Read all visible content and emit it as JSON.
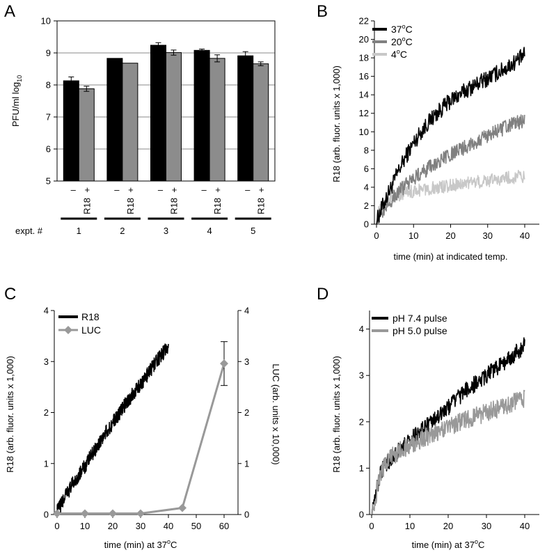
{
  "chart_data": [
    {
      "panel": "A",
      "type": "bar",
      "ylabel": "PFU/ml log10",
      "ylabel_main": "PFU/ml log",
      "ylabel_sub": "10",
      "ylim": [
        5,
        10
      ],
      "yticks": [
        5,
        6,
        7,
        8,
        9,
        10
      ],
      "grid": true,
      "group_label": "expt. #",
      "groups": [
        "1",
        "2",
        "3",
        "4",
        "5"
      ],
      "bar_labels": [
        "–",
        "+ R18"
      ],
      "minus_label": "–",
      "plus_label": "+",
      "r18_label": "R18",
      "colors": {
        "minus": "#000000",
        "plus": "#8c8c8c"
      },
      "series": [
        {
          "key": "minus",
          "values": [
            8.13,
            8.83,
            9.24,
            9.08,
            8.91
          ],
          "errors": [
            0.12,
            0,
            0.08,
            0.04,
            0.13
          ]
        },
        {
          "key": "plus",
          "values": [
            7.88,
            8.68,
            9.01,
            8.83,
            8.66
          ],
          "errors": [
            0.08,
            0,
            0.08,
            0.11,
            0.06
          ]
        }
      ]
    },
    {
      "panel": "B",
      "type": "line",
      "xlabel": "time (min) at indicated temp.",
      "ylabel": "R18 (arb. fluor. units x 1,000)",
      "xlim": [
        0,
        40
      ],
      "ylim": [
        0,
        22
      ],
      "xticks": [
        0,
        10,
        20,
        30,
        40
      ],
      "yticks": [
        0,
        2,
        4,
        6,
        8,
        10,
        12,
        14,
        16,
        18,
        20,
        22
      ],
      "legend_position": "top-left",
      "series": [
        {
          "name_main": "37",
          "name_sup": "o",
          "name_unit": "C",
          "color": "#000000",
          "noise": 0.9,
          "x": [
            0,
            1,
            2,
            3,
            4,
            5,
            6,
            8,
            10,
            12,
            15,
            20,
            25,
            30,
            35,
            40
          ],
          "y": [
            0.3,
            1.3,
            2.3,
            3.2,
            4.0,
            4.9,
            5.8,
            7.4,
            8.8,
            10.0,
            11.5,
            13.4,
            14.7,
            15.8,
            16.9,
            18.3
          ]
        },
        {
          "name_main": "20",
          "name_sup": "o",
          "name_unit": "C",
          "color": "#808080",
          "noise": 0.8,
          "x": [
            0,
            1,
            2,
            3,
            5,
            8,
            10,
            15,
            20,
            25,
            30,
            35,
            40
          ],
          "y": [
            0.3,
            1.0,
            1.6,
            2.2,
            3.1,
            4.3,
            5.0,
            6.3,
            7.5,
            8.6,
            9.6,
            10.5,
            11.3
          ]
        },
        {
          "name_main": "4",
          "name_sup": "o",
          "name_unit": "C",
          "color": "#c8c8c8",
          "noise": 0.7,
          "x": [
            0,
            1,
            2,
            3,
            5,
            8,
            10,
            15,
            20,
            25,
            30,
            35,
            40
          ],
          "y": [
            0.8,
            1.7,
            2.2,
            2.6,
            3.0,
            3.4,
            3.6,
            3.9,
            4.2,
            4.5,
            4.7,
            5.0,
            5.2
          ]
        }
      ]
    },
    {
      "panel": "C",
      "type": "line",
      "xlabel_main": "time (min) at 37",
      "xlabel_sup": "o",
      "xlabel_unit": "C",
      "ylabel": "R18 (arb. fluor. units x 1,000)",
      "y2label": "LUC (arb. units x 10,000)",
      "xlim": [
        0,
        65
      ],
      "ylim": [
        0,
        4
      ],
      "y2lim": [
        0,
        4
      ],
      "xticks": [
        0,
        10,
        20,
        30,
        40,
        50,
        60
      ],
      "yticks": [
        0,
        1,
        2,
        3,
        4
      ],
      "legend_position": "top-left",
      "series": [
        {
          "name": "R18",
          "axis": "left",
          "color": "#000000",
          "noise": 0.14,
          "x": [
            0,
            2,
            5,
            10,
            15,
            20,
            25,
            30,
            35,
            40
          ],
          "y": [
            0.05,
            0.25,
            0.55,
            0.95,
            1.4,
            1.8,
            2.2,
            2.55,
            2.95,
            3.3
          ]
        },
        {
          "name": "LUC",
          "axis": "right",
          "color": "#999999",
          "marker": "diamond",
          "x": [
            0,
            10,
            20,
            30,
            45,
            60
          ],
          "y": [
            0.02,
            0.02,
            0.02,
            0.02,
            0.13,
            2.96
          ],
          "errors": [
            0,
            0,
            0,
            0,
            0,
            0.43
          ]
        }
      ]
    },
    {
      "panel": "D",
      "type": "line",
      "xlabel_main": "time (min) at 37",
      "xlabel_sup": "o",
      "xlabel_unit": "C",
      "ylabel": "R18 (arb. fluor. units x 1,000)",
      "xlim": [
        0,
        40
      ],
      "ylim": [
        0,
        4.4
      ],
      "xticks": [
        0,
        10,
        20,
        30,
        40
      ],
      "yticks": [
        0,
        1,
        2,
        3,
        4
      ],
      "legend_position": "top-left",
      "series": [
        {
          "name": "pH 7.4 pulse",
          "color": "#000000",
          "noise": 0.18,
          "x": [
            0,
            1,
            2,
            3,
            5,
            8,
            10,
            15,
            20,
            25,
            30,
            35,
            40
          ],
          "y": [
            0.1,
            0.4,
            0.8,
            1.0,
            1.2,
            1.45,
            1.6,
            1.95,
            2.3,
            2.7,
            3.0,
            3.3,
            3.65
          ]
        },
        {
          "name": "pH 5.0 pulse",
          "color": "#999999",
          "noise": 0.2,
          "x": [
            0,
            1,
            2,
            3,
            5,
            8,
            10,
            15,
            20,
            25,
            30,
            35,
            40
          ],
          "y": [
            0.0,
            0.35,
            0.8,
            1.0,
            1.25,
            1.4,
            1.5,
            1.7,
            1.9,
            2.05,
            2.2,
            2.35,
            2.5
          ]
        }
      ]
    }
  ]
}
